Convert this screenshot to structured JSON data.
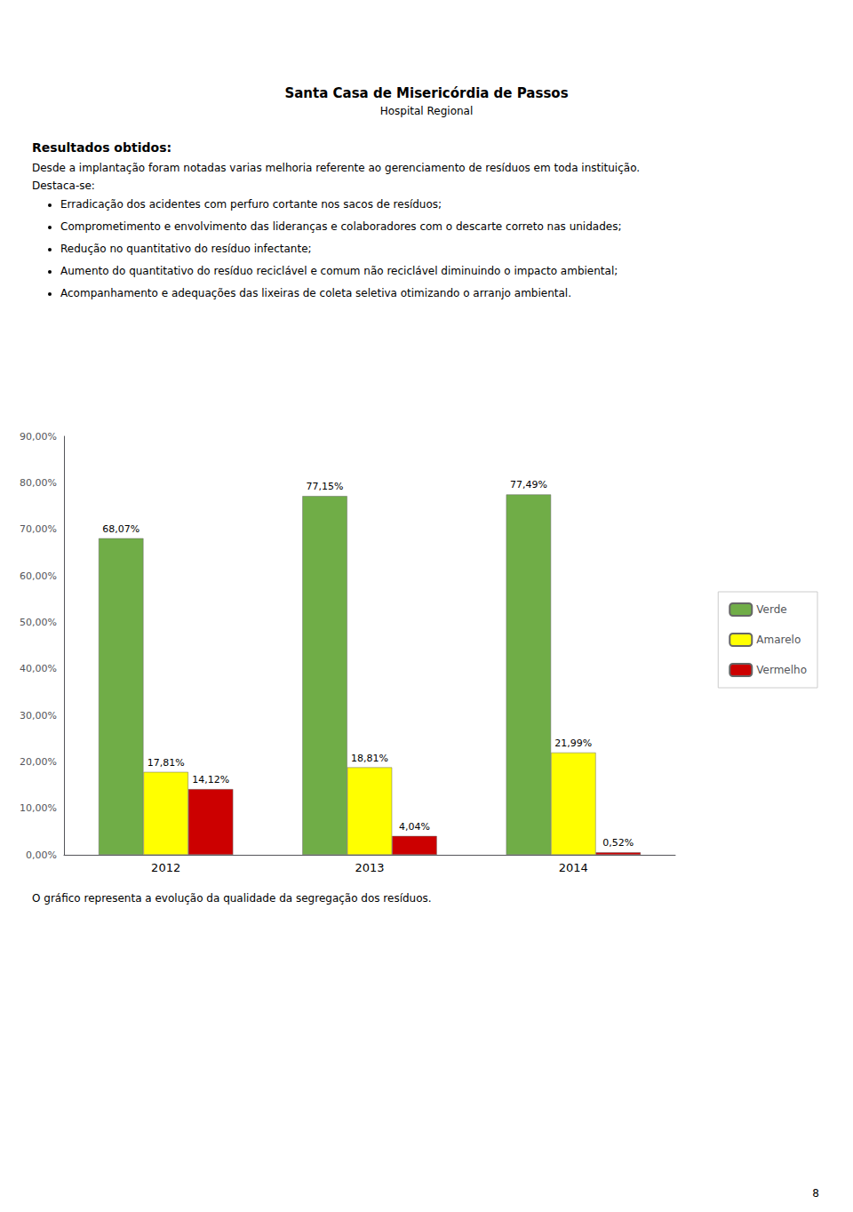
{
  "chart_data": {
    "type": "bar",
    "title": "Santa Casa de Misericórdia de Passos",
    "subtitle": "Hospital Regional",
    "annotations": [
      "Resultados obtidos:",
      "Desde a implantação foram notadas varias melhoria referente ao gerenciamento de resíduos em toda instituição.",
      "Destaca-se:",
      "Erradicação dos acidentes com perfuro cortante nos sacos de resíduos;",
      "Comprometimento e envolvimento das lideranças e colaboradores com o descarte correto nas unidades;",
      "Redução no quantitativo do resíduo infectante;",
      "Aumento do quantitativo do resíduo reciclável e comum não reciclável diminuindo o impacto ambiental;",
      "Acompanhamento e adequações das lixeiras de coleta seletiva otimizando o arranjo ambiental.",
      "O gráfico representa a evolução da qualidade da segregação dos resíduos.",
      "8"
    ],
    "categories": [
      "2012",
      "2013",
      "2014"
    ],
    "series": [
      {
        "name": "Verde",
        "color": "#70AD47",
        "values": [
          68.07,
          77.15,
          77.49
        ],
        "value_labels": [
          "68,07%",
          "77,15%",
          "77,49%"
        ]
      },
      {
        "name": "Amarelo",
        "color": "#FFFF00",
        "values": [
          17.81,
          18.81,
          21.99
        ],
        "value_labels": [
          "17,81%",
          "18,81%",
          "21,99%"
        ]
      },
      {
        "name": "Vermelho",
        "color": "#CC0000",
        "values": [
          14.12,
          4.04,
          0.52
        ],
        "value_labels": [
          "14,12%",
          "4,04%",
          "0,52%"
        ]
      }
    ],
    "ylim": [
      0,
      90
    ],
    "yticks": [
      {
        "value": 0,
        "label": "0,00%"
      },
      {
        "value": 10,
        "label": "10,00%"
      },
      {
        "value": 20,
        "label": "20,00%"
      },
      {
        "value": 30,
        "label": "30,00%"
      },
      {
        "value": 40,
        "label": "40,00%"
      },
      {
        "value": 50,
        "label": "50,00%"
      },
      {
        "value": 60,
        "label": "60,00%"
      },
      {
        "value": 70,
        "label": "70,00%"
      },
      {
        "value": 80,
        "label": "80,00%"
      },
      {
        "value": 90,
        "label": "90,00%"
      }
    ],
    "grid": false,
    "legend": "right",
    "data_labels": true
  }
}
